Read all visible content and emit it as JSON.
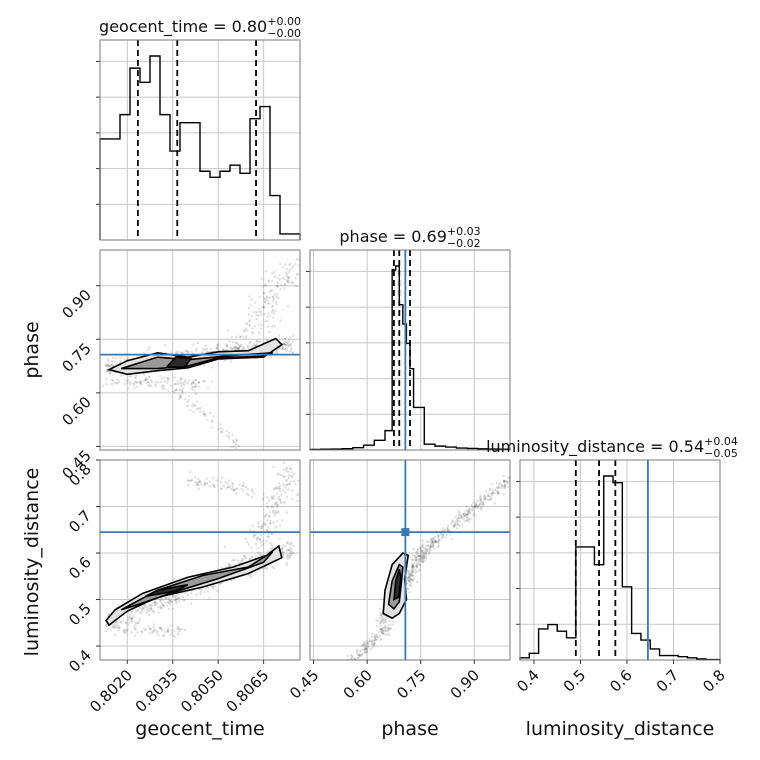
{
  "chart_data": {
    "type": "corner",
    "parameters": [
      "geocent_time",
      "phase",
      "luminosity_distance"
    ],
    "axis_labels": {
      "geocent_time": "geocent_time",
      "phase": "phase",
      "luminosity_distance": "luminosity_distance"
    },
    "ranges": {
      "geocent_time": [
        0.8011,
        0.8077
      ],
      "phase": [
        0.44,
        1.0
      ],
      "luminosity_distance": [
        0.37,
        0.8
      ]
    },
    "ticks": {
      "geocent_time": [
        0.802,
        0.8035,
        0.805,
        0.8065
      ],
      "phase": [
        0.45,
        0.6,
        0.75,
        0.9
      ],
      "luminosity_distance": [
        0.4,
        0.5,
        0.6,
        0.7,
        0.8
      ]
    },
    "tick_labels": {
      "geocent_time": [
        "0.8020",
        "0.8035",
        "0.8050",
        "0.8065"
      ],
      "phase": [
        "0.45",
        "0.60",
        "0.75",
        "0.90"
      ],
      "luminosity_distance": [
        "0.4",
        "0.5",
        "0.6",
        "0.7",
        "0.8"
      ]
    },
    "truths": {
      "geocent_time": null,
      "phase": 0.707,
      "luminosity_distance": 0.645
    },
    "titles": [
      {
        "parameter": "geocent_time",
        "text": "geocent_time = 0.80",
        "plus": "+0.00",
        "minus": "−0.00"
      },
      {
        "parameter": "phase",
        "text": "phase = 0.69",
        "plus": "+0.03",
        "minus": "−0.02"
      },
      {
        "parameter": "luminosity_distance",
        "text": "luminosity_distance = 0.54",
        "plus": "+0.04",
        "minus": "−0.05"
      }
    ],
    "quantiles": {
      "geocent_time": [
        0.80235,
        0.80365,
        0.80625
      ],
      "phase": [
        0.675,
        0.69,
        0.72
      ],
      "luminosity_distance": [
        0.49,
        0.54,
        0.575
      ]
    },
    "histograms": {
      "geocent_time": {
        "edges": [
          0.8011,
          0.80143,
          0.80176,
          0.80209,
          0.80242,
          0.80275,
          0.80308,
          0.80341,
          0.80374,
          0.80407,
          0.8044,
          0.80473,
          0.80506,
          0.80539,
          0.80572,
          0.80605,
          0.80638,
          0.80671,
          0.80704,
          0.80737,
          0.8077
        ],
        "counts": [
          50,
          50,
          62,
          85,
          78,
          91,
          62,
          44,
          58,
          58,
          34,
          31,
          34,
          37,
          33,
          60,
          66,
          22,
          3,
          3
        ]
      },
      "phase": {
        "edges": [
          0.44,
          0.47,
          0.5,
          0.53,
          0.56,
          0.59,
          0.62,
          0.65,
          0.67,
          0.68,
          0.69,
          0.7,
          0.71,
          0.72,
          0.73,
          0.76,
          0.79,
          0.82,
          0.85,
          0.88,
          0.91,
          0.94,
          0.97,
          1.0
        ],
        "counts": [
          0.3,
          0.4,
          0.5,
          0.7,
          1.2,
          2.5,
          5,
          10,
          93,
          95,
          75,
          65,
          55,
          42,
          22,
          3,
          2,
          1.5,
          1,
          0.8,
          0.6,
          0.5,
          0.4
        ]
      },
      "luminosity_distance": {
        "edges": [
          0.37,
          0.39,
          0.41,
          0.43,
          0.45,
          0.47,
          0.49,
          0.51,
          0.53,
          0.55,
          0.57,
          0.59,
          0.61,
          0.63,
          0.65,
          0.67,
          0.69,
          0.71,
          0.73,
          0.75,
          0.77,
          0.8
        ],
        "counts": [
          1,
          3,
          14,
          16,
          13,
          10,
          51,
          51,
          43,
          83,
          80,
          33,
          12,
          9,
          5,
          2,
          2,
          1.5,
          1,
          0.5,
          0.2
        ]
      }
    }
  }
}
